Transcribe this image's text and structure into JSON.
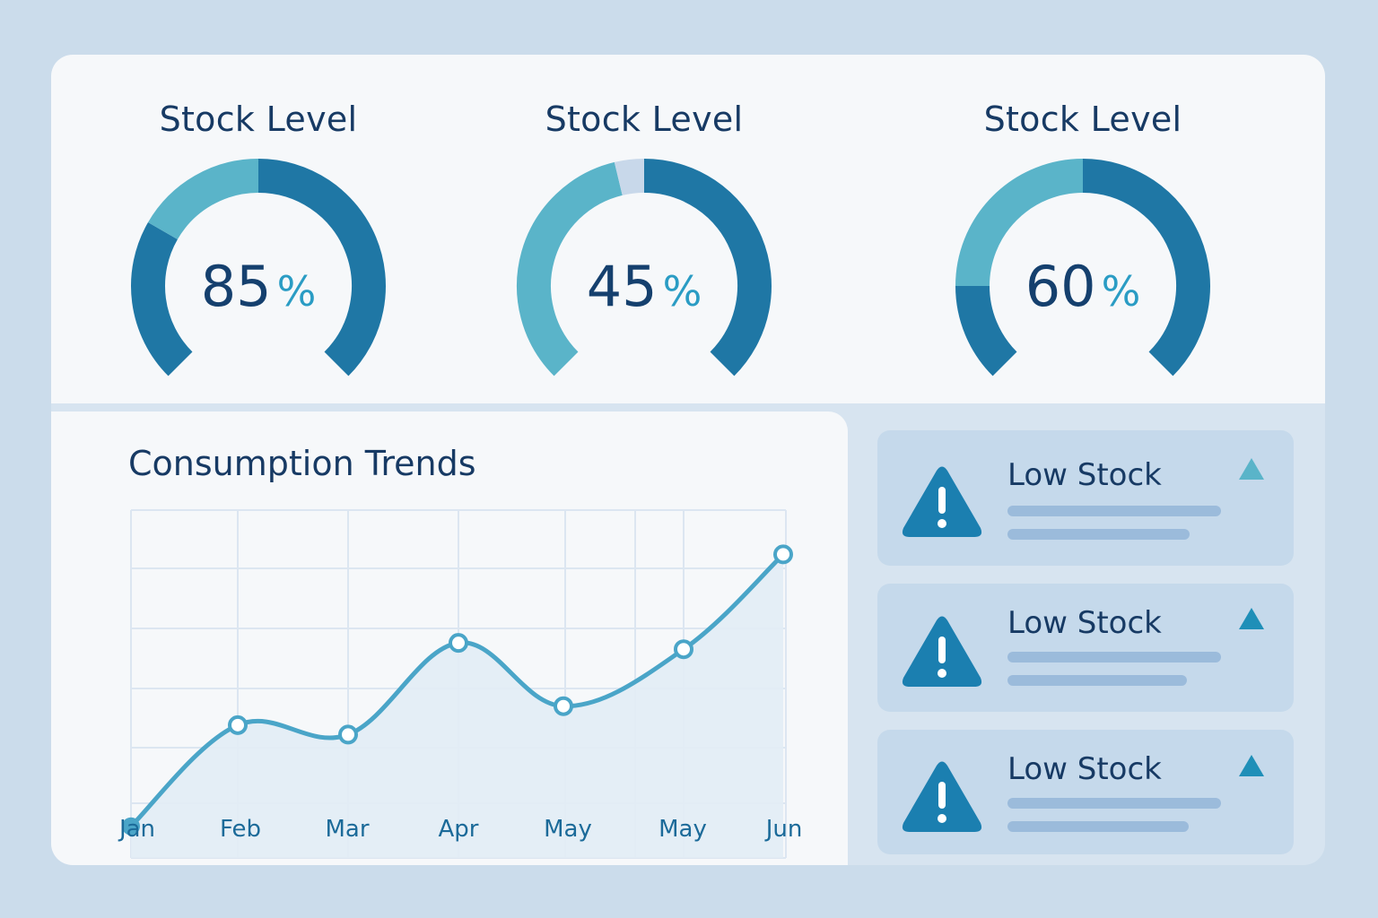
{
  "gauges": [
    {
      "title": "Stock Level",
      "value": "85",
      "unit": "%",
      "level": 0.85
    },
    {
      "title": "Stock Level",
      "value": "45",
      "unit": "%",
      "level": 0.45
    },
    {
      "title": "Stock Level",
      "value": "60",
      "unit": "%",
      "level": 0.6
    }
  ],
  "colors": {
    "gauge_dark": "#1f77a5",
    "gauge_light": "#5ab4c9",
    "gauge_track": "#c8d8ea",
    "line": "#4aa5c8",
    "alert_icon": "#1b7fb0"
  },
  "trend": {
    "title": "Consumption Trends"
  },
  "chart_data": {
    "type": "line",
    "categories": [
      "Jan",
      "Feb",
      "Mar",
      "Apr",
      "May",
      "May",
      "Jun"
    ],
    "values": [
      10,
      42,
      39,
      68,
      48,
      66,
      96
    ],
    "ylim": [
      0,
      110
    ],
    "grid": true,
    "title": "Consumption Trends",
    "xlabel": "",
    "ylabel": ""
  },
  "alerts": [
    {
      "title": "Low Stock",
      "icon": "warning-icon",
      "indicator": "triangle-up-icon"
    },
    {
      "title": "Low Stock",
      "icon": "warning-icon",
      "indicator": "triangle-up-icon"
    },
    {
      "title": "Low Stock",
      "icon": "warning-icon",
      "indicator": "triangle-up-icon"
    }
  ]
}
